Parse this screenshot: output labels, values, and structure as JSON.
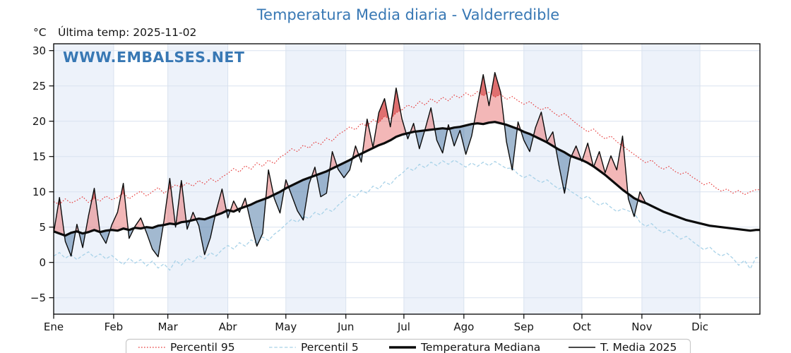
{
  "header": {
    "title": "Temperatura Media diaria - Valderredible",
    "y_unit": "°C",
    "last_temp_label": "Última temp: 2025-11-02",
    "watermark": "WWW.EMBALSES.NET"
  },
  "colors": {
    "title": "#3878b4",
    "watermark": "#3878b4",
    "axis": "#000000",
    "grid": "#d9e2ef",
    "band": "#edf2fa",
    "legend_border": "#c9c9c9",
    "p95": "#e63939",
    "p5": "#a8d2e8",
    "line": "#0b0b0b",
    "fill_above_median": "rgba(231,112,112,0.50)",
    "fill_below_median": "rgba(85,128,170,0.55)",
    "fill_above_p95": "rgba(204,42,42,0.50)",
    "fill_below_p5": "rgba(40,92,140,0.55)"
  },
  "legend": {
    "items": [
      {
        "label": "Percentil 95"
      },
      {
        "label": "Percentil 5"
      },
      {
        "label": "Temperatura Mediana"
      },
      {
        "label": "T. Media 2025"
      }
    ]
  },
  "chart_data": {
    "type": "line",
    "title": "Temperatura Media diaria - Valderredible",
    "subtitle": "Última temp: 2025-11-02",
    "ylabel": "°C",
    "grid": true,
    "legend_position": "bottom",
    "x_axis": {
      "tick_labels": [
        "Ene",
        "Feb",
        "Mar",
        "Abr",
        "May",
        "Jun",
        "Jul",
        "Ago",
        "Sep",
        "Oct",
        "Nov",
        "Dic"
      ],
      "month_start_days": [
        0,
        31,
        59,
        90,
        120,
        151,
        181,
        212,
        243,
        273,
        304,
        334
      ],
      "shaded_months": [
        0,
        2,
        4,
        6,
        8,
        10
      ],
      "days_in_year": 365
    },
    "y_axis": {
      "ticks": [
        {
          "value": -5,
          "label": "−5"
        },
        {
          "value": 0,
          "label": "0"
        },
        {
          "value": 5,
          "label": "5"
        },
        {
          "value": 10,
          "label": "10"
        },
        {
          "value": 15,
          "label": "15"
        },
        {
          "value": 20,
          "label": "20"
        },
        {
          "value": 25,
          "label": "25"
        },
        {
          "value": 30,
          "label": "30"
        }
      ],
      "range": [
        -7.33,
        30.97
      ]
    },
    "series": [
      {
        "name": "Percentil 95",
        "style": "dotted",
        "color": "#e63939",
        "start_day": 0,
        "day_step": 3,
        "extend_to_year_end": true,
        "values": [
          8.6,
          8.2,
          9.0,
          8.4,
          8.8,
          9.3,
          8.5,
          9.1,
          8.7,
          9.4,
          8.9,
          9.2,
          9.8,
          9.0,
          9.6,
          10.1,
          9.4,
          10.0,
          10.6,
          9.8,
          10.4,
          11.0,
          10.6,
          11.3,
          10.8,
          11.6,
          11.1,
          11.9,
          11.4,
          12.1,
          12.6,
          13.3,
          12.8,
          13.7,
          13.2,
          14.1,
          13.6,
          14.5,
          14.0,
          14.9,
          15.4,
          16.1,
          15.7,
          16.6,
          16.2,
          17.1,
          16.7,
          17.6,
          17.2,
          18.1,
          18.6,
          19.2,
          18.8,
          19.7,
          19.3,
          20.2,
          19.8,
          20.7,
          20.3,
          21.2,
          21.6,
          22.3,
          21.9,
          22.8,
          22.3,
          23.2,
          22.6,
          23.4,
          22.9,
          23.7,
          23.3,
          24.0,
          23.5,
          24.2,
          23.6,
          24.1,
          23.4,
          23.8,
          23.1,
          23.5,
          22.9,
          22.4,
          22.8,
          22.1,
          21.6,
          22.0,
          21.3,
          20.7,
          21.1,
          20.4,
          19.7,
          19.1,
          18.5,
          18.9,
          18.1,
          17.5,
          17.9,
          17.1,
          16.5,
          15.9,
          15.3,
          14.7,
          14.1,
          14.5,
          13.7,
          13.2,
          13.6,
          12.9,
          12.5,
          12.8,
          12.1,
          11.6,
          11.0,
          11.3,
          10.6,
          10.1,
          10.4,
          9.8,
          10.2,
          9.6,
          10.0,
          10.3
        ]
      },
      {
        "name": "Percentil 5",
        "style": "dashed",
        "color": "#a8d2e8",
        "start_day": 0,
        "day_step": 3,
        "extend_to_year_end": true,
        "values": [
          0.9,
          1.4,
          0.6,
          1.1,
          0.4,
          1.0,
          1.5,
          0.7,
          1.2,
          0.5,
          1.0,
          0.3,
          -0.3,
          0.6,
          -0.1,
          0.4,
          -0.5,
          0.2,
          -0.8,
          -0.2,
          -1.1,
          0.3,
          -0.4,
          0.6,
          0.1,
          1.0,
          0.5,
          1.4,
          0.9,
          1.8,
          2.4,
          1.9,
          2.8,
          2.3,
          3.2,
          2.7,
          3.6,
          3.1,
          4.0,
          4.6,
          5.4,
          6.1,
          5.7,
          6.6,
          6.2,
          7.1,
          6.7,
          7.6,
          7.2,
          8.1,
          8.8,
          9.6,
          9.2,
          10.2,
          9.8,
          10.8,
          10.4,
          11.4,
          11.0,
          12.0,
          12.6,
          13.4,
          13.0,
          13.9,
          13.4,
          14.2,
          13.7,
          14.4,
          13.9,
          14.5,
          14.0,
          13.5,
          14.1,
          13.6,
          14.2,
          13.7,
          14.3,
          13.8,
          13.3,
          13.4,
          12.5,
          12.0,
          12.4,
          11.8,
          11.3,
          11.7,
          11.0,
          10.4,
          10.8,
          10.1,
          9.6,
          9.0,
          9.4,
          8.6,
          8.1,
          8.5,
          7.8,
          7.2,
          7.6,
          7.3,
          7.0,
          5.7,
          5.1,
          5.5,
          4.7,
          4.2,
          4.6,
          3.9,
          3.3,
          3.7,
          3.0,
          2.4,
          1.8,
          2.2,
          1.4,
          0.9,
          1.3,
          0.6,
          -0.4,
          0.3,
          -0.9,
          0.7
        ]
      },
      {
        "name": "Temperatura Mediana",
        "style": "thick",
        "color": "#0b0b0b",
        "start_day": 0,
        "day_step": 3,
        "extend_to_year_end": true,
        "values": [
          4.4,
          4.1,
          3.8,
          4.2,
          4.4,
          4.1,
          4.3,
          4.6,
          4.3,
          4.5,
          4.6,
          4.5,
          4.8,
          4.6,
          4.9,
          4.8,
          5.0,
          4.9,
          5.2,
          5.3,
          5.5,
          5.4,
          5.7,
          5.8,
          6.0,
          6.2,
          6.1,
          6.4,
          6.7,
          7.0,
          7.4,
          7.2,
          7.6,
          7.9,
          8.2,
          8.6,
          8.9,
          9.2,
          9.6,
          10.0,
          10.5,
          10.9,
          11.3,
          11.7,
          12.0,
          12.3,
          12.6,
          12.9,
          13.3,
          13.7,
          14.1,
          14.5,
          15.0,
          15.4,
          15.8,
          16.2,
          16.6,
          16.9,
          17.3,
          17.8,
          18.1,
          18.3,
          18.5,
          18.6,
          18.7,
          18.8,
          18.9,
          19.0,
          18.9,
          19.1,
          19.2,
          19.4,
          19.6,
          19.7,
          19.6,
          19.8,
          19.9,
          19.7,
          19.5,
          19.2,
          18.9,
          18.5,
          18.2,
          17.8,
          17.4,
          17.0,
          16.5,
          16.0,
          15.6,
          15.1,
          14.8,
          14.5,
          14.1,
          13.6,
          13.0,
          12.4,
          11.7,
          11.0,
          10.3,
          9.7,
          9.1,
          8.7,
          8.4,
          8.0,
          7.6,
          7.2,
          6.9,
          6.6,
          6.3,
          6.0,
          5.8,
          5.6,
          5.4,
          5.2,
          5.1,
          5.0,
          4.9,
          4.8,
          4.7,
          4.6,
          4.5,
          4.6
        ]
      },
      {
        "name": "T. Media 2025",
        "style": "thin",
        "color": "#0b0b0b",
        "start_day": 0,
        "day_step": 3,
        "extend_to_year_end": false,
        "values": [
          4.2,
          9.2,
          3.0,
          0.9,
          5.4,
          2.1,
          6.6,
          10.5,
          4.1,
          2.7,
          5.3,
          7.1,
          11.2,
          3.4,
          5.1,
          6.3,
          4.2,
          1.9,
          0.8,
          5.9,
          11.9,
          5.0,
          11.6,
          4.7,
          7.1,
          5.2,
          1.1,
          3.5,
          7.3,
          10.4,
          6.3,
          8.7,
          7.1,
          9.1,
          5.5,
          2.3,
          4.1,
          13.1,
          9.1,
          7.0,
          11.7,
          9.5,
          7.3,
          6.0,
          11.1,
          13.5,
          9.3,
          9.8,
          15.7,
          13.2,
          12.0,
          13.1,
          16.5,
          14.2,
          20.3,
          16.3,
          21.2,
          23.2,
          19.2,
          24.7,
          20.3,
          17.5,
          19.7,
          16.1,
          18.9,
          21.9,
          17.3,
          15.5,
          19.5,
          16.5,
          18.7,
          15.3,
          17.9,
          22.3,
          26.6,
          22.2,
          26.9,
          24.1,
          17.1,
          13.1,
          19.9,
          17.3,
          15.7,
          19.1,
          21.3,
          17.1,
          18.5,
          13.9,
          9.8,
          14.7,
          16.5,
          14.3,
          16.9,
          13.5,
          15.7,
          12.7,
          15.1,
          13.1,
          17.9,
          9.0,
          6.5,
          10.0,
          8.4
        ]
      }
    ]
  }
}
